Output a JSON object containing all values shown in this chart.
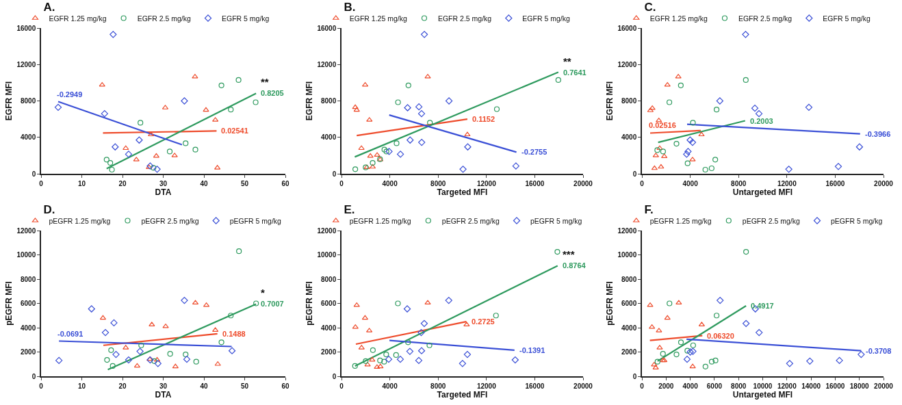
{
  "chart_data": [
    {
      "type": "scatter",
      "title": "A.",
      "xlabel": "DTA",
      "ylabel": "EGFR MFI",
      "xlim": [
        0,
        60
      ],
      "xticks": [
        0,
        10,
        20,
        30,
        40,
        50,
        60
      ],
      "ylim": [
        0,
        16000
      ],
      "yticks": [
        0,
        4000,
        8000,
        12000,
        16000
      ],
      "grid": false,
      "legend": "top",
      "annotations": [
        {
          "text": "0.02541",
          "x": 43.1,
          "y": 4700
        },
        {
          "text": "0.8205",
          "x": 52.8,
          "y": 8830
        },
        {
          "text": "**",
          "x": 52.8,
          "y": 8830
        },
        {
          "text": "-0.2949",
          "x": 4.2,
          "y": 7920
        }
      ],
      "series": [
        {
          "name": "EGFR 1.25 mg/kg",
          "color": "#ee4b2b",
          "marker": "triangle",
          "x": [
            15.0,
            37.8,
            30.5,
            40.5,
            42.8,
            27.0,
            20.8,
            23.4,
            28.3,
            32.8,
            26.5,
            43.3
          ],
          "values": [
            9750,
            10650,
            7250,
            7000,
            5900,
            4300,
            2800,
            1550,
            1950,
            2000,
            700,
            650
          ]
        },
        {
          "name": "EGFR 2.5 mg/kg",
          "color": "#2e9a5e",
          "marker": "circle",
          "x": [
            24.4,
            16.1,
            17.0,
            17.4,
            27.6,
            31.6,
            35.5,
            37.9,
            44.3,
            48.5,
            46.6,
            52.7
          ],
          "values": [
            5600,
            1550,
            1200,
            450,
            650,
            2450,
            3350,
            2650,
            9700,
            10300,
            7050,
            7850
          ]
        },
        {
          "name": "EGFR 5 mg/kg",
          "color": "#3a4fd6",
          "marker": "diamond",
          "x": [
            17.7,
            4.2,
            15.6,
            35.2,
            24.1,
            18.2,
            21.5,
            26.8,
            28.5
          ],
          "values": [
            15300,
            7300,
            6600,
            8000,
            3700,
            2950,
            2150,
            850,
            500
          ]
        },
        {
          "type": "line",
          "color": "#ee4b2b",
          "x": [
            15.2,
            43.1
          ],
          "values": [
            4480,
            4700
          ]
        },
        {
          "type": "line",
          "color": "#2e9a5e",
          "x": [
            16.1,
            52.8
          ],
          "values": [
            560,
            8830
          ]
        },
        {
          "type": "line",
          "color": "#3a4fd6",
          "x": [
            4.2,
            34.6
          ],
          "values": [
            7920,
            3190
          ]
        }
      ]
    },
    {
      "type": "scatter",
      "title": "B.",
      "xlabel": "Targeted MFI",
      "ylabel": "EGFR MFI",
      "xlim": [
        0,
        20000
      ],
      "xticks": [
        0,
        4000,
        8000,
        12000,
        16000,
        20000
      ],
      "ylim": [
        0,
        16000
      ],
      "yticks": [
        0,
        4000,
        8000,
        12000,
        16000
      ],
      "grid": false,
      "legend": "top",
      "annotations": [
        {
          "text": "0.1152",
          "x": 10420,
          "y": 6000
        },
        {
          "text": "0.7641",
          "x": 17950,
          "y": 11150
        },
        {
          "text": "**",
          "x": 17950,
          "y": 11150
        },
        {
          "text": "-0.2755",
          "x": 14480,
          "y": 2380
        }
      ],
      "series": [
        {
          "name": "EGFR 1.25 mg/kg",
          "color": "#ee4b2b",
          "marker": "triangle",
          "x": [
            1140,
            1260,
            1960,
            2310,
            7140,
            1650,
            2390,
            2950,
            2580,
            3200,
            10420,
            2100
          ],
          "values": [
            7300,
            7000,
            9750,
            5900,
            10650,
            2800,
            1950,
            2050,
            750,
            1550,
            4300,
            700
          ]
        },
        {
          "name": "EGFR 2.5 mg/kg",
          "color": "#2e9a5e",
          "marker": "circle",
          "x": [
            1140,
            2000,
            2580,
            3190,
            3550,
            3720,
            4560,
            4680,
            5540,
            7320,
            12860,
            17950
          ],
          "values": [
            500,
            700,
            1200,
            1600,
            2650,
            2450,
            3350,
            7850,
            9700,
            5600,
            7100,
            10300
          ]
        },
        {
          "name": "EGFR 5 mg/kg",
          "color": "#3a4fd6",
          "marker": "diamond",
          "x": [
            6860,
            5470,
            6410,
            6630,
            8900,
            5680,
            6640,
            3940,
            4880,
            10450,
            10060,
            14440
          ],
          "values": [
            15300,
            7250,
            7350,
            6600,
            8000,
            3700,
            3450,
            2450,
            2150,
            2950,
            500,
            850
          ]
        },
        {
          "type": "line",
          "color": "#ee4b2b",
          "x": [
            1260,
            10420
          ],
          "values": [
            4200,
            6000
          ]
        },
        {
          "type": "line",
          "color": "#2e9a5e",
          "x": [
            1100,
            17950
          ],
          "values": [
            1850,
            11150
          ]
        },
        {
          "type": "line",
          "color": "#3a4fd6",
          "x": [
            3950,
            14480
          ],
          "values": [
            6450,
            2380
          ]
        }
      ]
    },
    {
      "type": "scatter",
      "title": "C.",
      "xlabel": "Untargeted MFI",
      "ylabel": "EGFR MFI",
      "xlim": [
        0,
        20000
      ],
      "xticks": [
        0,
        4000,
        8000,
        12000,
        16000,
        20000
      ],
      "ylim": [
        0,
        16000
      ],
      "yticks": [
        0,
        4000,
        8000,
        12000,
        16000
      ],
      "grid": false,
      "legend": "top",
      "annotations": [
        {
          "text": "0.02516",
          "x": 680,
          "y": 4470
        },
        {
          "text": "0.2003",
          "x": 8540,
          "y": 5820
        },
        {
          "text": "-0.3966",
          "x": 18060,
          "y": 4380
        }
      ],
      "series": [
        {
          "name": "EGFR 1.25 mg/kg",
          "color": "#ee4b2b",
          "marker": "triangle",
          "x": [
            700,
            860,
            2110,
            3010,
            1400,
            1470,
            1150,
            1850,
            1040,
            1580,
            4190,
            4930
          ],
          "values": [
            6950,
            7200,
            9750,
            10650,
            5850,
            2800,
            2000,
            1900,
            600,
            750,
            1550,
            4300
          ]
        },
        {
          "name": "EGFR 2.5 mg/kg",
          "color": "#2e9a5e",
          "marker": "circle",
          "x": [
            3220,
            8600,
            2270,
            6180,
            4220,
            2860,
            1270,
            1750,
            3780,
            6070,
            5250,
            5770
          ],
          "values": [
            9700,
            10300,
            7850,
            7050,
            5600,
            3300,
            2600,
            2450,
            1150,
            1550,
            450,
            600
          ]
        },
        {
          "name": "EGFR 5 mg/kg",
          "color": "#3a4fd6",
          "marker": "diamond",
          "x": [
            8580,
            6450,
            9350,
            9690,
            13820,
            3990,
            4190,
            3820,
            3700,
            18010,
            12160,
            16260
          ],
          "values": [
            15300,
            8000,
            7200,
            6600,
            7300,
            3700,
            3450,
            2450,
            2150,
            2950,
            500,
            800
          ]
        },
        {
          "type": "line",
          "color": "#ee4b2b",
          "x": [
            680,
            4870
          ],
          "values": [
            4470,
            4750
          ]
        },
        {
          "type": "line",
          "color": "#2e9a5e",
          "x": [
            1340,
            8540
          ],
          "values": [
            3450,
            5820
          ]
        },
        {
          "type": "line",
          "color": "#3a4fd6",
          "x": [
            3740,
            18060
          ],
          "values": [
            5430,
            4380
          ]
        }
      ]
    },
    {
      "type": "scatter",
      "title": "D.",
      "xlabel": "DTA",
      "ylabel": "pEGFR MFI",
      "xlim": [
        0,
        60
      ],
      "xticks": [
        0,
        10,
        20,
        30,
        40,
        50,
        60
      ],
      "ylim": [
        0,
        12000
      ],
      "yticks": [
        0,
        2000,
        4000,
        6000,
        8000,
        10000,
        12000
      ],
      "grid": false,
      "legend": "top",
      "annotations": [
        {
          "text": "0.1488",
          "x": 43.3,
          "y": 3500
        },
        {
          "text": "0.7007",
          "x": 52.8,
          "y": 5950
        },
        {
          "text": "*",
          "x": 52.8,
          "y": 5950
        },
        {
          "text": "-0.0691",
          "x": 4.4,
          "y": 2900
        }
      ],
      "series": [
        {
          "name": "pEGFR 1.25 mg/kg",
          "color": "#ee4b2b",
          "marker": "triangle",
          "x": [
            15.2,
            27.2,
            30.6,
            37.9,
            40.6,
            42.8,
            20.8,
            23.6,
            26.7,
            28.5,
            33.0,
            43.4
          ],
          "values": [
            4800,
            4250,
            4100,
            6050,
            5850,
            3800,
            2350,
            850,
            1400,
            1350,
            800,
            1000
          ]
        },
        {
          "name": "pEGFR 2.5 mg/kg",
          "color": "#2e9a5e",
          "marker": "circle",
          "x": [
            16.2,
            17.2,
            17.6,
            24.6,
            27.8,
            31.7,
            35.5,
            38.1,
            44.3,
            46.6,
            48.6,
            52.8
          ],
          "values": [
            1350,
            2150,
            850,
            2550,
            1250,
            1850,
            1800,
            1200,
            2800,
            5000,
            10300,
            6000
          ]
        },
        {
          "name": "pEGFR 5 mg/kg",
          "color": "#3a4fd6",
          "marker": "diamond",
          "x": [
            4.4,
            12.4,
            15.8,
            17.9,
            18.4,
            21.5,
            24.3,
            26.8,
            28.7,
            35.2,
            35.8,
            46.9
          ],
          "values": [
            1300,
            5550,
            3600,
            4400,
            1800,
            1350,
            2050,
            1350,
            1050,
            6250,
            1400,
            2100
          ]
        },
        {
          "type": "line",
          "color": "#ee4b2b",
          "x": [
            15.3,
            43.3
          ],
          "values": [
            2550,
            3500
          ]
        },
        {
          "type": "line",
          "color": "#2e9a5e",
          "x": [
            16.4,
            52.8
          ],
          "values": [
            550,
            5950
          ]
        },
        {
          "type": "line",
          "color": "#3a4fd6",
          "x": [
            4.4,
            46.8
          ],
          "values": [
            2900,
            2450
          ]
        }
      ]
    },
    {
      "type": "scatter",
      "title": "E.",
      "xlabel": "Targeted MFI",
      "ylabel": "pEGFR MFI",
      "xlim": [
        0,
        20000
      ],
      "xticks": [
        0,
        4000,
        8000,
        12000,
        16000,
        20000
      ],
      "ylim": [
        0,
        12000
      ],
      "yticks": [
        0,
        2000,
        4000,
        6000,
        8000,
        10000,
        12000
      ],
      "grid": false,
      "legend": "top",
      "annotations": [
        {
          "text": "0.2725",
          "x": 10340,
          "y": 4500
        },
        {
          "text": "0.8764",
          "x": 17890,
          "y": 9100
        },
        {
          "text": "***",
          "x": 17890,
          "y": 9100
        },
        {
          "text": "-0.1391",
          "x": 14320,
          "y": 2150
        }
      ],
      "series": [
        {
          "name": "pEGFR 1.25 mg/kg",
          "color": "#ee4b2b",
          "marker": "triangle",
          "x": [
            1260,
            1150,
            1950,
            2300,
            1660,
            2540,
            2160,
            2940,
            3220,
            7140,
            10360
          ],
          "values": [
            5850,
            4050,
            4800,
            3750,
            2350,
            1350,
            950,
            750,
            800,
            6050,
            4250
          ]
        },
        {
          "name": "pEGFR 2.5 mg/kg",
          "color": "#2e9a5e",
          "marker": "circle",
          "x": [
            1120,
            2000,
            2600,
            3190,
            3530,
            3700,
            4520,
            4670,
            5510,
            7280,
            12790,
            17870
          ],
          "values": [
            850,
            1250,
            2150,
            1300,
            1200,
            1800,
            1750,
            6000,
            2800,
            2550,
            5000,
            10250
          ]
        },
        {
          "name": "pEGFR 5 mg/kg",
          "color": "#3a4fd6",
          "marker": "diamond",
          "x": [
            5440,
            8880,
            6850,
            6600,
            5660,
            6630,
            3910,
            4870,
            6400,
            10420,
            10020,
            14380
          ],
          "values": [
            5550,
            6250,
            4350,
            3600,
            2050,
            2100,
            1400,
            1400,
            1300,
            1800,
            1050,
            1350
          ]
        },
        {
          "type": "line",
          "color": "#ee4b2b",
          "x": [
            1190,
            10340
          ],
          "values": [
            2650,
            4500
          ]
        },
        {
          "type": "line",
          "color": "#2e9a5e",
          "x": [
            1120,
            17890
          ],
          "values": [
            850,
            9100
          ]
        },
        {
          "type": "line",
          "color": "#3a4fd6",
          "x": [
            3970,
            14320
          ],
          "values": [
            2950,
            2150
          ]
        }
      ]
    },
    {
      "type": "scatter",
      "title": "F.",
      "xlabel": "Untargeted MFI",
      "ylabel": "pEGFR MFI",
      "xlim": [
        0,
        20000
      ],
      "xticks": [
        0,
        2000,
        4000,
        6000,
        8000,
        10000,
        12000,
        14000,
        16000,
        18000,
        20000
      ],
      "ylim": [
        0,
        12000
      ],
      "yticks": [
        0,
        2000,
        4000,
        6000,
        8000,
        10000,
        12000
      ],
      "grid": false,
      "legend": "top",
      "annotations": [
        {
          "text": "0.06320",
          "x": 5000,
          "y": 3350
        },
        {
          "text": "0.4917",
          "x": 8620,
          "y": 5800
        },
        {
          "text": "-0.3708",
          "x": 18150,
          "y": 2100
        }
      ],
      "series": [
        {
          "name": "pEGFR 1.25 mg/kg",
          "color": "#ee4b2b",
          "marker": "triangle",
          "x": [
            680,
            830,
            1410,
            2110,
            3050,
            4950,
            1470,
            1010,
            1140,
            1730,
            1850,
            4200
          ],
          "values": [
            5850,
            4050,
            3750,
            4800,
            6050,
            4250,
            2350,
            950,
            700,
            1300,
            1300,
            800
          ]
        },
        {
          "name": "pEGFR 2.5 mg/kg",
          "color": "#2e9a5e",
          "marker": "circle",
          "x": [
            2280,
            6180,
            8620,
            3230,
            3760,
            4240,
            2860,
            1740,
            1290,
            5260,
            5780,
            6090
          ],
          "values": [
            6000,
            5000,
            10250,
            2800,
            2100,
            2550,
            1800,
            1850,
            1200,
            800,
            1200,
            1300
          ]
        },
        {
          "name": "pEGFR 5 mg/kg",
          "color": "#3a4fd6",
          "marker": "diamond",
          "x": [
            6470,
            9390,
            8620,
            9700,
            4000,
            4220,
            3740,
            12230,
            13900,
            16350,
            18150
          ],
          "values": [
            6250,
            5550,
            4350,
            3600,
            2000,
            2050,
            1400,
            1050,
            1250,
            1300,
            1800
          ]
        },
        {
          "type": "line",
          "color": "#ee4b2b",
          "x": [
            660,
            5000
          ],
          "values": [
            2950,
            3350
          ]
        },
        {
          "type": "line",
          "color": "#2e9a5e",
          "x": [
            1290,
            8620
          ],
          "values": [
            1250,
            5800
          ]
        },
        {
          "type": "line",
          "color": "#3a4fd6",
          "x": [
            3690,
            18150
          ],
          "values": [
            3050,
            2100
          ]
        }
      ]
    }
  ]
}
